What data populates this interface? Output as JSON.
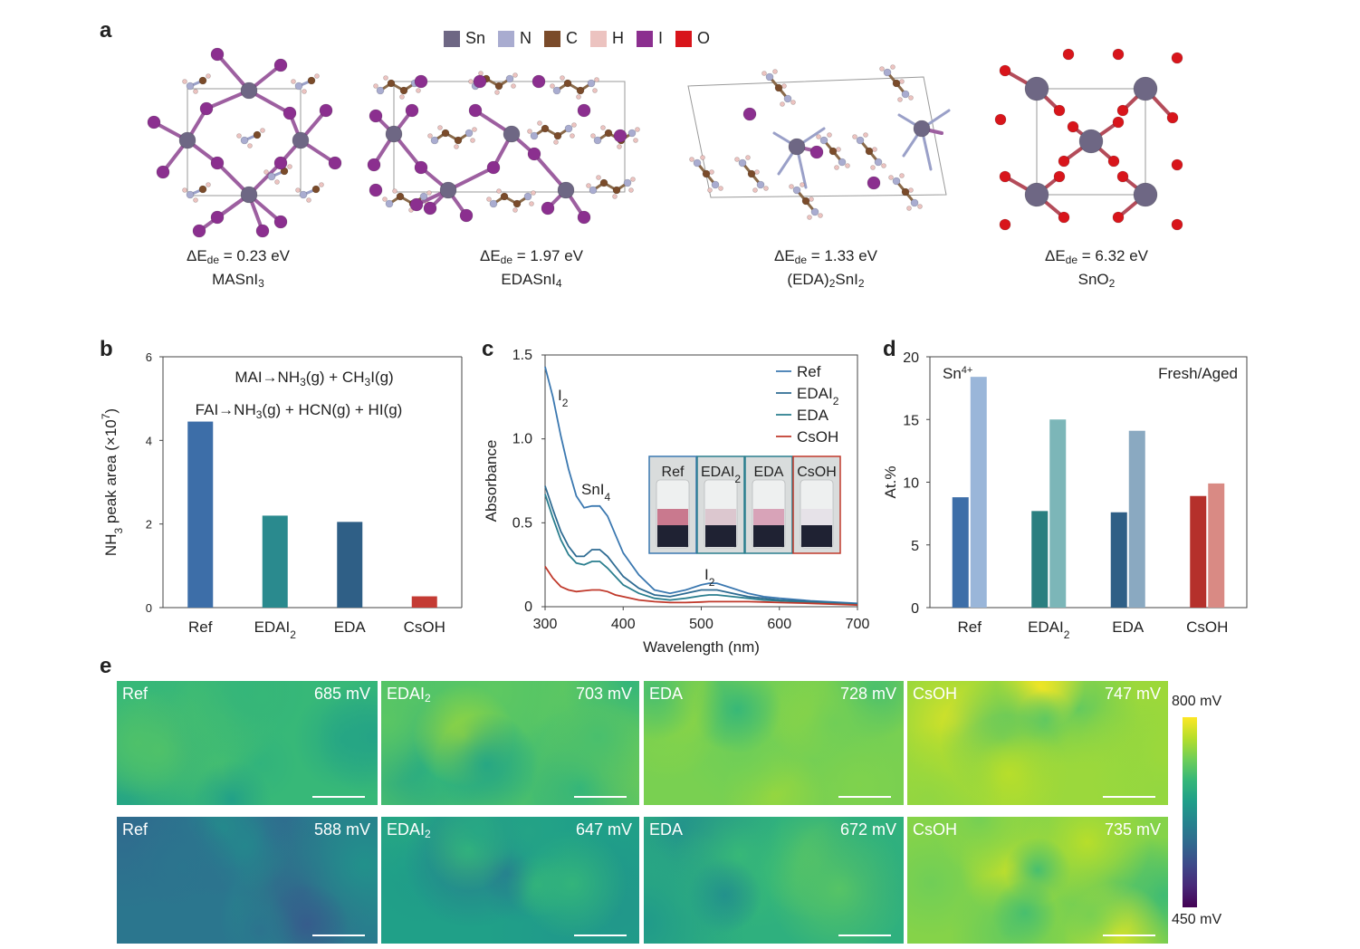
{
  "panel_labels": {
    "a": "a",
    "b": "b",
    "c": "c",
    "d": "d",
    "e": "e"
  },
  "legend_a": [
    {
      "label": "Sn",
      "color": "#6e6784"
    },
    {
      "label": "N",
      "color": "#a9acd0"
    },
    {
      "label": "C",
      "color": "#7a4b2a"
    },
    {
      "label": "H",
      "color": "#ecc3c0"
    },
    {
      "label": "I",
      "color": "#8b2f8f"
    },
    {
      "label": "O",
      "color": "#d8151b"
    }
  ],
  "structures": [
    {
      "energy": "0.23 eV",
      "formula_base": "MASnI",
      "formula_sub": "3",
      "formula_tail": ""
    },
    {
      "energy": "1.97 eV",
      "formula_base": "EDASnI",
      "formula_sub": "4",
      "formula_tail": ""
    },
    {
      "energy": "1.33 eV",
      "formula_base": "(EDA)",
      "formula_sub": "2",
      "formula_tail": "SnI",
      "formula_sub2": "2"
    },
    {
      "energy": "6.32 eV",
      "formula_base": "SnO",
      "formula_sub": "2",
      "formula_tail": ""
    }
  ],
  "energy_prefix": "ΔE",
  "energy_sub": "de",
  "chart_data": [
    {
      "type": "bar",
      "panel": "b",
      "categories": [
        "Ref",
        "EDAI2",
        "EDA",
        "CsOH"
      ],
      "category_display": [
        [
          "Ref",
          ""
        ],
        [
          "EDAI",
          "2"
        ],
        [
          "EDA",
          ""
        ],
        [
          "CsOH",
          ""
        ]
      ],
      "values": [
        4.45,
        2.2,
        2.05,
        0.27
      ],
      "colors": [
        "#3d6ea8",
        "#2a8a8e",
        "#2f5f86",
        "#c43b34"
      ],
      "ylabel": "NH3 peak area (×10^7)",
      "ylim": [
        0,
        6
      ],
      "yticks": [
        0,
        2,
        4,
        6
      ],
      "annotations": [
        "MAI→NH3(g) + CH3I(g)",
        "FAI→NH3(g) + HCN(g) + HI(g)"
      ]
    },
    {
      "type": "line",
      "panel": "c",
      "xlabel": "Wavelength (nm)",
      "ylabel": "Absorbance",
      "xlim": [
        300,
        700
      ],
      "ylim": [
        0,
        1.5
      ],
      "xticks": [
        300,
        400,
        500,
        600,
        700
      ],
      "yticks": [
        0,
        0.5,
        1.0,
        1.5
      ],
      "ytick_labels": [
        "0",
        "0.5",
        "1.0",
        "1.5"
      ],
      "annotations": [
        "I2",
        "SnI4",
        "I2"
      ],
      "series": [
        {
          "name": "Ref",
          "color": "#3b78b0",
          "x": [
            300,
            310,
            320,
            330,
            340,
            350,
            360,
            370,
            380,
            390,
            400,
            420,
            440,
            460,
            480,
            500,
            510,
            520,
            540,
            560,
            580,
            600,
            640,
            700
          ],
          "y": [
            1.43,
            1.25,
            1.02,
            0.82,
            0.66,
            0.59,
            0.6,
            0.6,
            0.54,
            0.43,
            0.32,
            0.19,
            0.1,
            0.08,
            0.1,
            0.13,
            0.14,
            0.14,
            0.11,
            0.08,
            0.06,
            0.05,
            0.035,
            0.02
          ]
        },
        {
          "name": "EDAI2",
          "color": "#2e6b92",
          "x": [
            300,
            310,
            320,
            330,
            340,
            350,
            360,
            370,
            380,
            390,
            400,
            420,
            440,
            460,
            480,
            500,
            510,
            520,
            540,
            560,
            580,
            600,
            640,
            700
          ],
          "y": [
            0.72,
            0.58,
            0.45,
            0.36,
            0.3,
            0.3,
            0.34,
            0.34,
            0.3,
            0.24,
            0.18,
            0.11,
            0.07,
            0.06,
            0.08,
            0.1,
            0.1,
            0.1,
            0.08,
            0.06,
            0.05,
            0.04,
            0.03,
            0.015
          ]
        },
        {
          "name": "EDA",
          "color": "#2a7e8e",
          "x": [
            300,
            310,
            320,
            330,
            340,
            350,
            360,
            370,
            380,
            390,
            400,
            420,
            440,
            460,
            480,
            500,
            510,
            520,
            540,
            560,
            580,
            600,
            640,
            700
          ],
          "y": [
            0.67,
            0.53,
            0.4,
            0.31,
            0.26,
            0.25,
            0.27,
            0.27,
            0.23,
            0.18,
            0.13,
            0.08,
            0.05,
            0.04,
            0.05,
            0.065,
            0.07,
            0.07,
            0.06,
            0.05,
            0.04,
            0.035,
            0.025,
            0.012
          ]
        },
        {
          "name": "CsOH",
          "color": "#c0392b",
          "x": [
            300,
            310,
            320,
            330,
            340,
            350,
            360,
            370,
            380,
            390,
            400,
            420,
            440,
            460,
            480,
            500,
            510,
            520,
            540,
            560,
            580,
            600,
            640,
            700
          ],
          "y": [
            0.24,
            0.17,
            0.12,
            0.1,
            0.09,
            0.095,
            0.1,
            0.1,
            0.09,
            0.07,
            0.06,
            0.04,
            0.03,
            0.025,
            0.025,
            0.028,
            0.03,
            0.03,
            0.03,
            0.03,
            0.028,
            0.025,
            0.02,
            0.01
          ]
        }
      ],
      "inset": {
        "labels": [
          "Ref",
          "EDAI2",
          "EDA",
          "CsOH"
        ],
        "label_display": [
          [
            "Ref",
            ""
          ],
          [
            "EDAI",
            "2"
          ],
          [
            "EDA",
            ""
          ],
          [
            "CsOH",
            ""
          ]
        ],
        "frame_colors": [
          "#3b78b0",
          "#2a7e8e",
          "#2a7e8e",
          "#c0392b"
        ],
        "solution_colors": [
          "#c9798e",
          "#dcc7cf",
          "#d8a3b8",
          "#e6e2e8"
        ]
      }
    },
    {
      "type": "bar",
      "panel": "d",
      "categories": [
        "Ref",
        "EDAI2",
        "EDA",
        "CsOH"
      ],
      "category_display": [
        [
          "Ref",
          ""
        ],
        [
          "EDAI",
          "2"
        ],
        [
          "EDA",
          ""
        ],
        [
          "CsOH",
          ""
        ]
      ],
      "series": [
        {
          "name": "Fresh",
          "values": [
            8.8,
            7.7,
            7.6,
            8.9
          ],
          "colors": [
            "#3d6ea8",
            "#2a7f80",
            "#2f5f86",
            "#b5302b"
          ]
        },
        {
          "name": "Aged",
          "values": [
            18.4,
            15.0,
            14.1,
            9.9
          ],
          "colors": [
            "#9ab6d9",
            "#7cb6b8",
            "#8aa9c1",
            "#d98a84"
          ]
        }
      ],
      "ylabel": "At.%",
      "ylim": [
        0,
        20
      ],
      "yticks": [
        0,
        5,
        10,
        15,
        20
      ],
      "annotations": [
        "Sn4+",
        "Fresh/Aged"
      ]
    }
  ],
  "maps": {
    "colorbar_max": "800 mV",
    "colorbar_min": "450 mV",
    "rows": [
      [
        {
          "label": "Ref",
          "label_sub": "",
          "value": "685 mV",
          "mean": 685
        },
        {
          "label": "EDAI",
          "label_sub": "2",
          "value": "703 mV",
          "mean": 703
        },
        {
          "label": "EDA",
          "label_sub": "",
          "value": "728 mV",
          "mean": 728
        },
        {
          "label": "CsOH",
          "label_sub": "",
          "value": "747 mV",
          "mean": 747
        }
      ],
      [
        {
          "label": "Ref",
          "label_sub": "",
          "value": "588 mV",
          "mean": 588
        },
        {
          "label": "EDAI",
          "label_sub": "2",
          "value": "647 mV",
          "mean": 647
        },
        {
          "label": "EDA",
          "label_sub": "",
          "value": "672 mV",
          "mean": 672
        },
        {
          "label": "CsOH",
          "label_sub": "",
          "value": "735 mV",
          "mean": 735
        }
      ]
    ]
  }
}
